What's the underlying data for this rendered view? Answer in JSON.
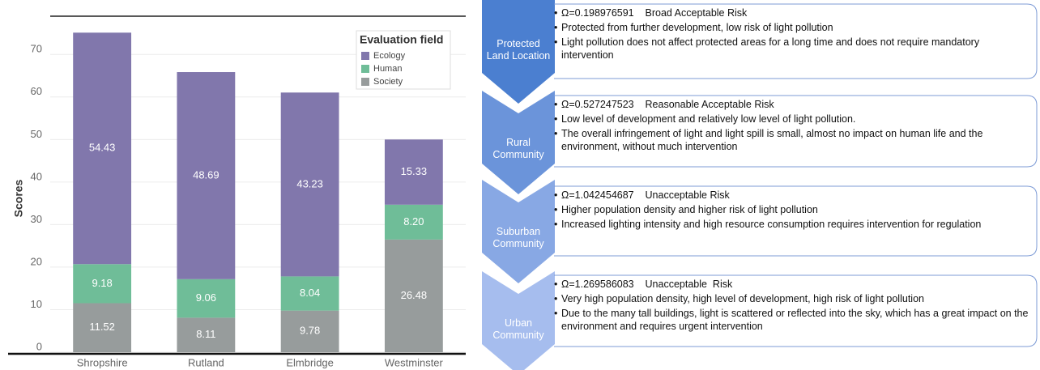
{
  "chart_data": {
    "type": "stacked_bar",
    "categories": [
      "Shropshire",
      "Rutland",
      "Elmbridge",
      "Westminster"
    ],
    "series": [
      {
        "name": "Society",
        "color": "#979c9c",
        "values": [
          11.52,
          8.11,
          9.78,
          26.48
        ]
      },
      {
        "name": "Human",
        "color": "#6fbd98",
        "values": [
          9.18,
          9.06,
          8.04,
          8.2
        ],
        "value_labels": [
          "9.18",
          "9.06",
          "8.04",
          "8.20"
        ]
      },
      {
        "name": "Ecology",
        "color": "#8177ac",
        "values": [
          54.43,
          48.69,
          43.23,
          15.33
        ]
      }
    ],
    "y_label": "Scores",
    "legend_title": "Evaluation field",
    "legend": "top-right",
    "ylim": [
      0,
      79
    ],
    "yticks": [
      0,
      10,
      20,
      30,
      40,
      50,
      60,
      70
    ],
    "grid": true
  },
  "diagram": {
    "items": [
      {
        "label": [
          "Protected",
          "Land Location"
        ],
        "bullets": [
          "Ω=0.198976591    Broad Acceptable Risk",
          "Protected from further development, low risk of light pollution",
          "Light pollution does not affect protected areas for a long time and does not require mandatory intervention"
        ]
      },
      {
        "label": [
          "Rural",
          "Community"
        ],
        "bullets": [
          "Ω=0.527247523    Reasonable Acceptable Risk",
          "Low level of development and relatively low level of light pollution.",
          "The overall infringement of light and light spill is small, almost no impact on human life and the environment, without much intervention"
        ]
      },
      {
        "label": [
          "Suburban",
          "Community"
        ],
        "bullets": [
          "Ω=1.042454687    Unacceptable Risk",
          "Higher population density and higher risk of light pollution",
          "Increased lighting intensity and high resource consumption requires intervention for regulation"
        ]
      },
      {
        "label": [
          "Urban",
          "Community"
        ],
        "bullets": [
          "Ω=1.269586083    Unacceptable  Risk",
          "Very high population density, high level of development, high risk of light pollution",
          "Due to the many tall buildings, light is scattered or reflected into the sky, which has a great impact on the environment and requires urgent intervention"
        ]
      }
    ]
  }
}
